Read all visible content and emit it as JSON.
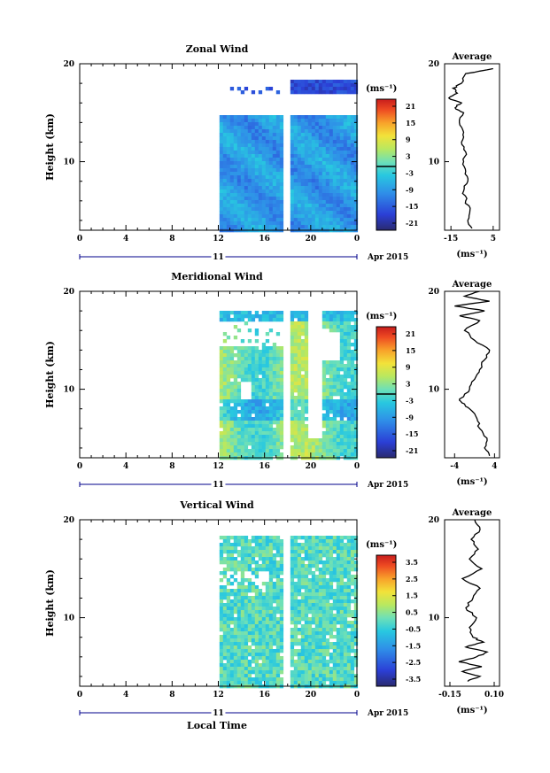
{
  "figure": {
    "xlabel_bottom": "Local Time",
    "date_label": "Apr 2015",
    "day_label": "11"
  },
  "chart_data": [
    {
      "type": "heatmap",
      "title": "Zonal Wind",
      "ylabel": "Height (km)",
      "xticks": [
        "0",
        "4",
        "8",
        "12",
        "16",
        "20",
        "0"
      ],
      "yticks": [
        "10",
        "20"
      ],
      "ylim": [
        3,
        20
      ],
      "xlim": [
        0,
        24
      ],
      "data_start_hour": 12.1,
      "gap_hour": 17.7,
      "units": "(ms⁻¹)",
      "colorbar_ticks": [
        "21",
        "15",
        "9",
        "3",
        "-3",
        "-9",
        "-15",
        "-21"
      ],
      "colorbar_range": [
        -24,
        24
      ],
      "zero_line": true,
      "profile": {
        "title": "Average",
        "xticks": [
          "-15",
          "5"
        ],
        "xlim": [
          -18,
          8
        ],
        "yticks": [
          "10",
          "20"
        ],
        "units": "(ms⁻¹)",
        "heights": [
          3.2,
          4,
          5,
          6,
          7,
          8,
          9,
          10,
          11,
          12,
          13,
          14,
          15,
          15.5,
          16,
          16.5,
          17,
          17.5,
          18,
          19,
          19.5
        ],
        "values": [
          -5,
          -7,
          -6,
          -8,
          -9,
          -7,
          -8,
          -9,
          -8,
          -10,
          -9,
          -11,
          -9,
          -13,
          -10,
          -16,
          -12,
          -14,
          -10,
          -8,
          5
        ]
      }
    },
    {
      "type": "heatmap",
      "title": "Meridional Wind",
      "ylabel": "Height (km)",
      "xticks": [
        "0",
        "4",
        "8",
        "12",
        "16",
        "20",
        "0"
      ],
      "yticks": [
        "10",
        "20"
      ],
      "ylim": [
        3,
        20
      ],
      "xlim": [
        0,
        24
      ],
      "data_start_hour": 12.1,
      "gap_hour": 17.7,
      "units": "(ms⁻¹)",
      "colorbar_ticks": [
        "21",
        "15",
        "9",
        "3",
        "-3",
        "-9",
        "-15",
        "-21"
      ],
      "colorbar_range": [
        -24,
        24
      ],
      "zero_line": true,
      "profile": {
        "title": "Average",
        "xticks": [
          "-4",
          "4"
        ],
        "xlim": [
          -6,
          5
        ],
        "yticks": [
          "10",
          "20"
        ],
        "units": "(ms⁻¹)",
        "heights": [
          3.2,
          4,
          5,
          6,
          7,
          8,
          8.5,
          9,
          10,
          11,
          12,
          13,
          14,
          15,
          16,
          17,
          17.5,
          18,
          18.5,
          19,
          19.5,
          20
        ],
        "values": [
          3,
          2,
          2.5,
          1,
          0.5,
          -1,
          -2,
          -3,
          -1,
          0,
          1,
          2,
          3,
          0,
          -2,
          1,
          -3,
          2,
          -4,
          3,
          -2,
          1
        ]
      }
    },
    {
      "type": "heatmap",
      "title": "Vertical Wind",
      "ylabel": "Height (km)",
      "xticks": [
        "0",
        "4",
        "8",
        "12",
        "16",
        "20",
        "0"
      ],
      "yticks": [
        "10",
        "20"
      ],
      "ylim": [
        3,
        20
      ],
      "xlim": [
        0,
        24
      ],
      "data_start_hour": 12.1,
      "gap_hour": 17.7,
      "units": "(ms⁻¹)",
      "colorbar_ticks": [
        "3.5",
        "2.5",
        "1.5",
        "0.5",
        "-0.5",
        "-1.5",
        "-2.5",
        "-3.5"
      ],
      "colorbar_range": [
        -4,
        4
      ],
      "zero_line": false,
      "profile": {
        "title": "Average",
        "xticks": [
          "-0.15",
          "0.10"
        ],
        "xlim": [
          -0.18,
          0.13
        ],
        "yticks": [
          "10",
          "20"
        ],
        "units": "(ms⁻¹)",
        "heights": [
          3.5,
          4,
          4.5,
          5,
          5.5,
          6,
          6.5,
          7,
          7.5,
          8,
          9,
          10,
          11,
          12,
          13,
          14,
          15,
          16,
          17,
          18,
          19,
          20
        ],
        "values": [
          -0.05,
          0.02,
          -0.08,
          0.03,
          -0.1,
          0.0,
          0.06,
          -0.06,
          0.04,
          -0.02,
          -0.04,
          0.0,
          -0.06,
          -0.02,
          0.02,
          -0.08,
          0.03,
          -0.04,
          0.01,
          -0.03,
          0.02,
          -0.01
        ]
      }
    }
  ]
}
